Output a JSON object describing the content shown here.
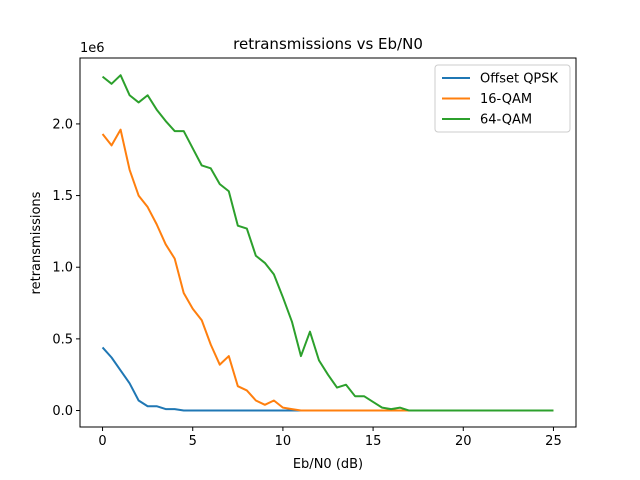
{
  "chart_data": {
    "type": "line",
    "title": "retransmissions vs Eb/N0",
    "xlabel": "Eb/N0 (dB)",
    "ylabel": "retransmissions",
    "y_offset_label": "1e6",
    "xlim": [
      -1.25,
      26.25
    ],
    "ylim": [
      -115000,
      2460000
    ],
    "xticks": [
      0,
      5,
      10,
      15,
      20,
      25
    ],
    "yticks": [
      0.0,
      0.5,
      1.0,
      1.5,
      2.0
    ],
    "ytick_labels": [
      "0.0",
      "0.5",
      "1.0",
      "1.5",
      "2.0"
    ],
    "ytick_scale": 1000000,
    "legend_position": "top-right",
    "grid": false,
    "x": [
      0,
      0.5,
      1,
      1.5,
      2,
      2.5,
      3,
      3.5,
      4,
      4.5,
      5,
      5.5,
      6,
      6.5,
      7,
      7.5,
      8,
      8.5,
      9,
      9.5,
      10,
      10.5,
      11,
      11.5,
      12,
      12.5,
      13,
      13.5,
      14,
      14.5,
      15,
      15.5,
      16,
      16.5,
      17,
      17.5,
      18,
      18.5,
      19,
      19.5,
      20,
      20.5,
      21,
      21.5,
      22,
      22.5,
      23,
      23.5,
      24,
      24.5,
      25
    ],
    "series": [
      {
        "name": "Offset QPSK",
        "color": "#1f77b4",
        "values": [
          440000,
          370000,
          280000,
          190000,
          70000,
          30000,
          30000,
          10000,
          10000,
          0,
          0,
          0,
          0,
          0,
          0,
          0,
          0,
          0,
          0,
          0,
          0,
          0,
          0,
          0,
          0,
          0,
          0,
          0,
          0,
          0,
          0,
          0,
          0,
          0,
          0,
          0,
          0,
          0,
          0,
          0,
          0,
          0,
          0,
          0,
          0,
          0,
          0,
          0,
          0,
          0,
          0
        ]
      },
      {
        "name": "16-QAM",
        "color": "#ff7f0e",
        "values": [
          1930000,
          1850000,
          1960000,
          1680000,
          1500000,
          1420000,
          1300000,
          1160000,
          1060000,
          820000,
          710000,
          630000,
          460000,
          320000,
          380000,
          170000,
          140000,
          70000,
          40000,
          70000,
          20000,
          10000,
          0,
          0,
          0,
          0,
          0,
          0,
          0,
          0,
          0,
          0,
          0,
          0,
          0,
          0,
          0,
          0,
          0,
          0,
          0,
          0,
          0,
          0,
          0,
          0,
          0,
          0,
          0,
          0,
          0
        ]
      },
      {
        "name": "64-QAM",
        "color": "#2ca02c",
        "values": [
          2330000,
          2280000,
          2340000,
          2200000,
          2150000,
          2200000,
          2100000,
          2020000,
          1950000,
          1950000,
          1830000,
          1710000,
          1690000,
          1580000,
          1530000,
          1290000,
          1270000,
          1080000,
          1030000,
          950000,
          790000,
          620000,
          380000,
          550000,
          350000,
          250000,
          160000,
          180000,
          100000,
          100000,
          60000,
          20000,
          10000,
          20000,
          0,
          0,
          0,
          0,
          0,
          0,
          0,
          0,
          0,
          0,
          0,
          0,
          0,
          0,
          0,
          0,
          0
        ]
      }
    ]
  }
}
